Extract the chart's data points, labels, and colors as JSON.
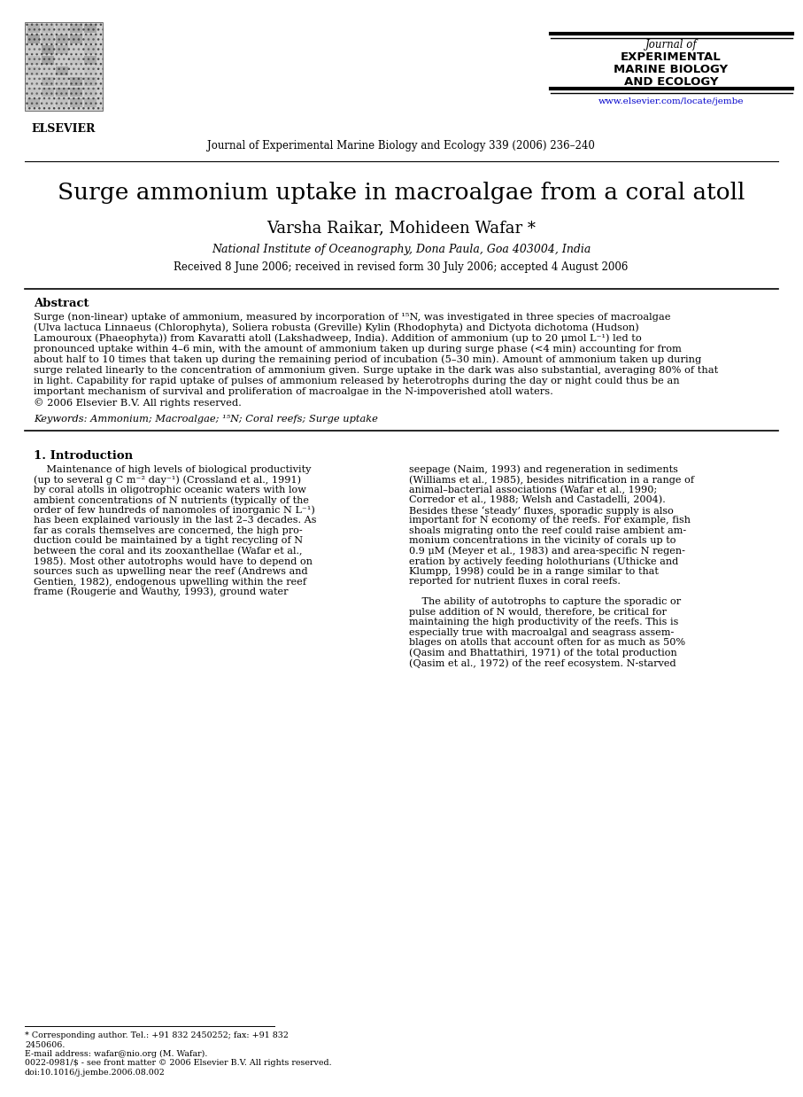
{
  "title": "Surge ammonium uptake in macroalgae from a coral atoll",
  "authors": "Varsha Raikar, Mohideen Wafar *",
  "affiliation": "National Institute of Oceanography, Dona Paula, Goa 403004, India",
  "received": "Received 8 June 2006; received in revised form 30 July 2006; accepted 4 August 2006",
  "journal_name": "Journal of Experimental Marine Biology and Ecology 339 (2006) 236–240",
  "journal_box_line1": "Journal of",
  "journal_box_line2": "EXPERIMENTAL",
  "journal_box_line3": "MARINE BIOLOGY",
  "journal_box_line4": "AND ECOLOGY",
  "journal_url": "www.elsevier.com/locate/jembe",
  "elsevier_label": "ELSEVIER",
  "abstract_title": "Abstract",
  "keywords_line": "Keywords: Ammonium; Macroalgae; ¹⁵N; Coral reefs; Surge uptake",
  "intro_heading": "1. Introduction",
  "footnote1": "* Corresponding author. Tel.: +91 832 2450252; fax: +91 832",
  "footnote1b": "2450606.",
  "footnote2": "E-mail address: wafar@nio.org (M. Wafar).",
  "footnote3": "0022-0981/$ - see front matter © 2006 Elsevier B.V. All rights reserved.",
  "footnote4": "doi:10.1016/j.jembe.2006.08.002",
  "bg_color": "#ffffff",
  "text_color": "#000000",
  "link_color": "#0000cc",
  "abstract_lines": [
    "Surge (non-linear) uptake of ammonium, measured by incorporation of ¹⁵N, was investigated in three species of macroalgae",
    "(Ulva lactuca Linnaeus (Chlorophyta), Soliera robusta (Greville) Kylin (Rhodophyta) and Dictyota dichotoma (Hudson)",
    "Lamouroux (Phaeophyta)) from Kavaratti atoll (Lakshadweep, India). Addition of ammonium (up to 20 μmol L⁻¹) led to",
    "pronounced uptake within 4–6 min, with the amount of ammonium taken up during surge phase (<4 min) accounting for from",
    "about half to 10 times that taken up during the remaining period of incubation (5–30 min). Amount of ammonium taken up during",
    "surge related linearly to the concentration of ammonium given. Surge uptake in the dark was also substantial, averaging 80% of that",
    "in light. Capability for rapid uptake of pulses of ammonium released by heterotrophs during the day or night could thus be an",
    "important mechanism of survival and proliferation of macroalgae in the N-impoverished atoll waters.",
    "© 2006 Elsevier B.V. All rights reserved."
  ],
  "col1_lines": [
    "    Maintenance of high levels of biological productivity",
    "(up to several g C m⁻² day⁻¹) (Crossland et al., 1991)",
    "by coral atolls in oligotrophic oceanic waters with low",
    "ambient concentrations of N nutrients (typically of the",
    "order of few hundreds of nanomoles of inorganic N L⁻¹)",
    "has been explained variously in the last 2–3 decades. As",
    "far as corals themselves are concerned, the high pro-",
    "duction could be maintained by a tight recycling of N",
    "between the coral and its zooxanthellae (Wafar et al.,",
    "1985). Most other autotrophs would have to depend on",
    "sources such as upwelling near the reef (Andrews and",
    "Gentien, 1982), endogenous upwelling within the reef",
    "frame (Rougerie and Wauthy, 1993), ground water"
  ],
  "col2_lines": [
    "seepage (Naim, 1993) and regeneration in sediments",
    "(Williams et al., 1985), besides nitrification in a range of",
    "animal–bacterial associations (Wafar et al., 1990;",
    "Corredor et al., 1988; Welsh and Castadelli, 2004).",
    "Besides these ‘steady’ fluxes, sporadic supply is also",
    "important for N economy of the reefs. For example, fish",
    "shoals migrating onto the reef could raise ambient am-",
    "monium concentrations in the vicinity of corals up to",
    "0.9 μM (Meyer et al., 1983) and area-specific N regen-",
    "eration by actively feeding holothurians (Uthicke and",
    "Klumpp, 1998) could be in a range similar to that",
    "reported for nutrient fluxes in coral reefs.",
    "",
    "    The ability of autotrophs to capture the sporadic or",
    "pulse addition of N would, therefore, be critical for",
    "maintaining the high productivity of the reefs. This is",
    "especially true with macroalgal and seagrass assem-",
    "blages on atolls that account often for as much as 50%",
    "(Qasim and Bhattathiri, 1971) of the total production",
    "(Qasim et al., 1972) of the reef ecosystem. N-starved"
  ]
}
